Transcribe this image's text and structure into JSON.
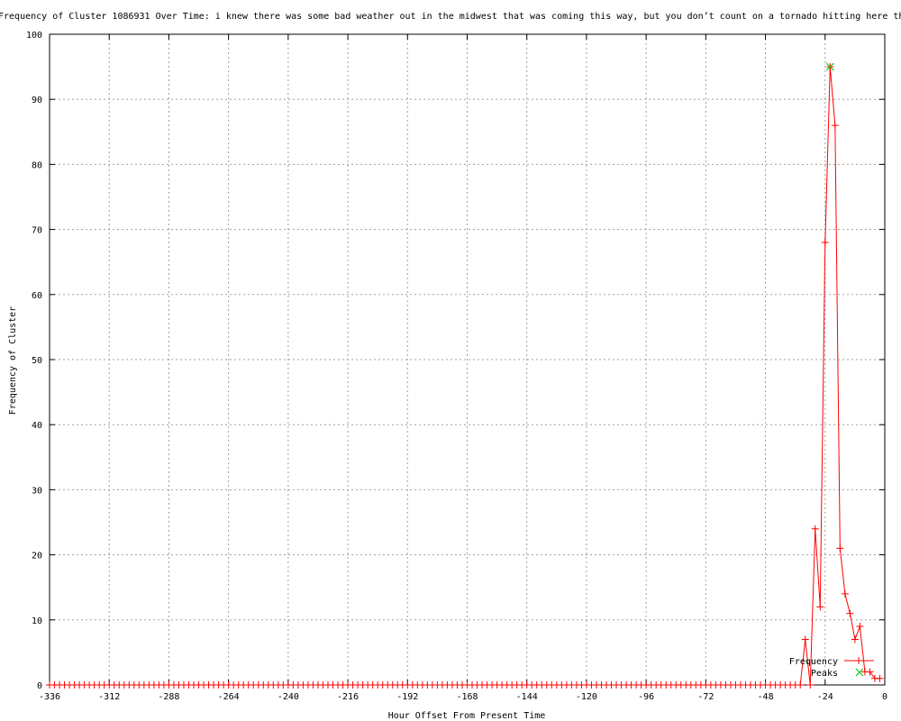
{
  "chart_data": {
    "type": "line",
    "title": "Frequency of Cluster 1086931 Over Time: i knew there was some bad weather out in the midwest that was coming this way, but you don’t count on a tornado hitting here th",
    "xlabel": "Hour Offset From Present Time",
    "ylabel": "Frequency of Cluster",
    "xlim": [
      -336,
      0
    ],
    "ylim": [
      0,
      100
    ],
    "xticks": [
      -336,
      -312,
      -288,
      -264,
      -240,
      -216,
      -192,
      -168,
      -144,
      -120,
      -96,
      -72,
      -48,
      -24,
      0
    ],
    "yticks": [
      0,
      10,
      20,
      30,
      40,
      50,
      60,
      70,
      80,
      90,
      100
    ],
    "grid": true,
    "legend_placement": "bottom-right",
    "series": [
      {
        "name": "Frequency",
        "color": "#ff0000",
        "zero_before": -32,
        "x_step": 2,
        "points": [
          [
            -32,
            7
          ],
          [
            -30,
            0
          ],
          [
            -28,
            24
          ],
          [
            -26,
            12
          ],
          [
            -24,
            68
          ],
          [
            -22,
            95
          ],
          [
            -20,
            86
          ],
          [
            -18,
            21
          ],
          [
            -16,
            14
          ],
          [
            -14,
            11
          ],
          [
            -12,
            7
          ],
          [
            -10,
            9
          ],
          [
            -8,
            2
          ],
          [
            -6,
            2
          ],
          [
            -4,
            1
          ],
          [
            -2,
            1
          ]
        ]
      },
      {
        "name": "Peaks",
        "color": "#00c000",
        "points": [
          [
            -22,
            95
          ]
        ]
      }
    ]
  }
}
